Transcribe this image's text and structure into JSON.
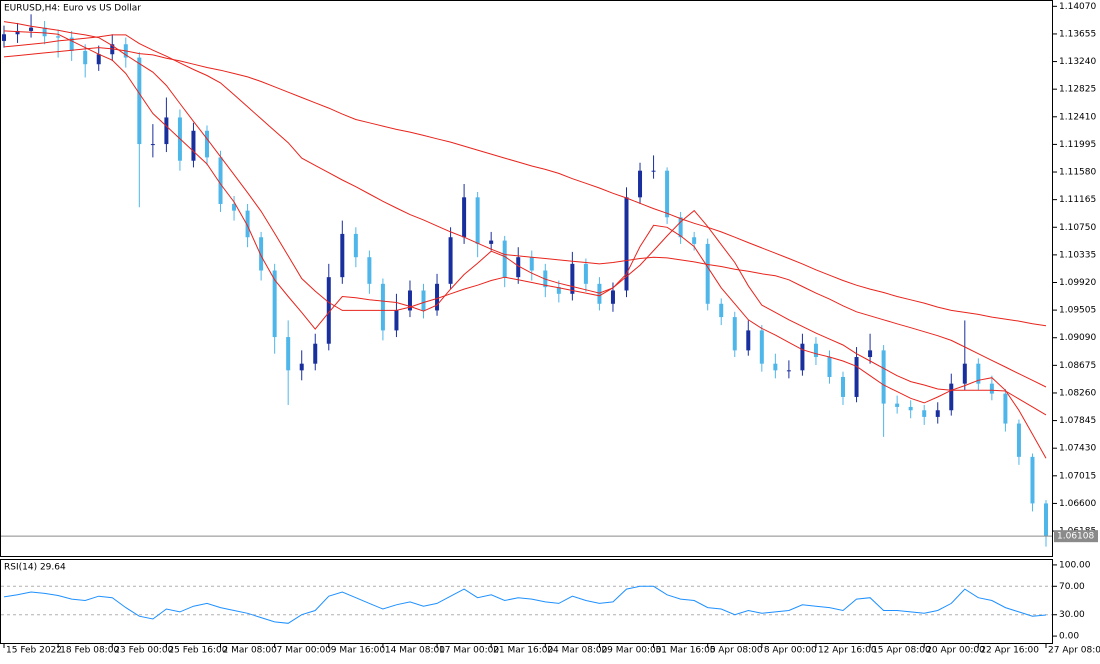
{
  "chart_data": [
    {
      "type": "candlestick",
      "title": "EURUSD,H4:  Euro vs US Dollar",
      "categories": [
        "15 Feb 2022",
        null,
        null,
        null,
        "18 Feb 08:00",
        null,
        null,
        null,
        "23 Feb 00:00",
        null,
        null,
        null,
        "25 Feb 16:00",
        null,
        null,
        null,
        "2 Mar 08:00",
        null,
        null,
        null,
        "7 Mar 00:00",
        null,
        null,
        null,
        "9 Mar 16:00",
        null,
        null,
        null,
        "14 Mar 08:00",
        null,
        null,
        null,
        "17 Mar 00:00",
        null,
        null,
        null,
        "21 Mar 16:00",
        null,
        null,
        null,
        "24 Mar 08:00",
        null,
        null,
        null,
        "29 Mar 00:00",
        null,
        null,
        null,
        "31 Mar 16:00",
        null,
        null,
        null,
        "5 Apr 08:00",
        null,
        null,
        null,
        "8 Apr 00:00",
        null,
        null,
        null,
        "12 Apr 16:00",
        null,
        null,
        null,
        "15 Apr 08:00",
        null,
        null,
        null,
        "20 Apr 00:00",
        null,
        null,
        null,
        "22 Apr 16:00",
        null,
        null,
        null,
        null,
        "27 Apr 08:00"
      ],
      "open": [
        1.1355,
        1.1365,
        1.137,
        1.1375,
        1.1362,
        1.136,
        1.134,
        1.132,
        1.1335,
        1.135,
        1.133,
        1.12,
        1.12,
        1.124,
        1.1175,
        1.122,
        1.118,
        1.111,
        1.11,
        1.106,
        1.101,
        1.091,
        1.086,
        1.087,
        1.09,
        1.1,
        1.1065,
        1.103,
        1.099,
        1.092,
        1.095,
        1.098,
        1.095,
        1.099,
        1.106,
        1.112,
        1.105,
        1.1055,
        1.1,
        1.103,
        1.101,
        1.0985,
        1.0975,
        1.102,
        1.099,
        1.096,
        1.098,
        1.112,
        1.116,
        1.116,
        1.109,
        1.106,
        1.105,
        1.096,
        1.094,
        1.089,
        1.092,
        1.087,
        1.086,
        1.086,
        1.09,
        1.088,
        1.085,
        1.082,
        1.088,
        1.089,
        1.081,
        1.0805,
        1.08,
        1.079,
        1.08,
        1.084,
        1.087,
        1.084,
        1.0825,
        1.078,
        1.073,
        1.066
      ],
      "high": [
        1.1378,
        1.1382,
        1.1395,
        1.1385,
        1.1372,
        1.137,
        1.135,
        1.1348,
        1.1365,
        1.136,
        1.1338,
        1.123,
        1.127,
        1.1252,
        1.1232,
        1.1228,
        1.119,
        1.1122,
        1.111,
        1.1068,
        1.102,
        1.0935,
        1.089,
        1.0915,
        1.102,
        1.1085,
        1.1075,
        1.104,
        1.0998,
        1.0975,
        1.0995,
        1.099,
        1.1005,
        1.1075,
        1.114,
        1.1128,
        1.1068,
        1.1062,
        1.1045,
        1.104,
        1.102,
        1.0995,
        1.1038,
        1.1028,
        1.1,
        1.0992,
        1.1135,
        1.1172,
        1.1183,
        1.1165,
        1.1098,
        1.1068,
        1.1058,
        1.0968,
        1.0948,
        1.0935,
        1.0928,
        1.0885,
        1.0875,
        1.0915,
        1.091,
        1.089,
        1.0858,
        1.0895,
        1.0915,
        1.0898,
        1.0822,
        1.0815,
        1.0808,
        1.0812,
        1.0855,
        1.0935,
        1.0878,
        1.0852,
        1.0832,
        1.0786,
        1.0735,
        1.0665
      ],
      "low": [
        1.1345,
        1.1352,
        1.136,
        1.135,
        1.133,
        1.1325,
        1.13,
        1.131,
        1.1325,
        1.1315,
        1.1105,
        1.118,
        1.1188,
        1.116,
        1.1165,
        1.1168,
        1.1098,
        1.1085,
        1.1045,
        1.0995,
        1.0885,
        1.0808,
        1.0845,
        1.086,
        1.089,
        1.099,
        1.1015,
        1.0975,
        1.0905,
        1.091,
        1.094,
        1.0938,
        1.0942,
        1.0982,
        1.105,
        1.103,
        1.104,
        1.0985,
        1.099,
        1.0995,
        1.097,
        1.0962,
        1.0965,
        1.0978,
        1.095,
        1.0948,
        1.097,
        1.111,
        1.1148,
        1.108,
        1.105,
        1.104,
        1.095,
        1.0928,
        1.088,
        1.0882,
        1.0858,
        1.0848,
        1.0848,
        1.0852,
        1.0868,
        1.084,
        1.0808,
        1.0812,
        1.087,
        1.076,
        1.0795,
        1.0788,
        1.0778,
        1.078,
        1.0792,
        1.083,
        1.083,
        1.0815,
        1.0768,
        1.0718,
        1.0648,
        1.0595
      ],
      "close": [
        1.1365,
        1.137,
        1.1375,
        1.1362,
        1.136,
        1.134,
        1.132,
        1.1335,
        1.135,
        1.133,
        1.12,
        1.12,
        1.124,
        1.1175,
        1.122,
        1.118,
        1.111,
        1.11,
        1.106,
        1.101,
        1.091,
        1.086,
        1.087,
        1.09,
        1.1,
        1.1065,
        1.103,
        1.099,
        1.092,
        1.095,
        1.098,
        1.095,
        1.099,
        1.106,
        1.112,
        1.105,
        1.1055,
        1.1,
        1.103,
        1.101,
        1.0985,
        1.0975,
        1.102,
        1.099,
        1.096,
        1.098,
        1.112,
        1.116,
        1.116,
        1.109,
        1.106,
        1.105,
        1.096,
        1.094,
        1.089,
        1.092,
        1.087,
        1.086,
        1.086,
        1.09,
        1.088,
        1.085,
        1.082,
        1.088,
        1.089,
        1.081,
        1.0805,
        1.08,
        1.079,
        1.08,
        1.084,
        1.087,
        1.084,
        1.0825,
        1.078,
        1.073,
        1.066,
        1.06108
      ],
      "up_color": "#1a2f9e",
      "down_color": "#4fb6ea",
      "lines": [
        {
          "color": "#e8241c",
          "values": [
            1.137,
            1.1369,
            1.1368,
            1.1367,
            1.1365,
            1.1355,
            1.1345,
            1.1335,
            1.1326,
            1.1306,
            1.1276,
            1.1246,
            1.1227,
            1.1208,
            1.1189,
            1.117,
            1.114,
            1.1113,
            1.1077,
            1.1032,
            1.0996,
            1.0971,
            1.0947,
            1.0922,
            1.0947,
            1.0971,
            1.0969,
            1.0966,
            1.0964,
            1.0962,
            1.0956,
            1.0949,
            1.0958,
            1.0982,
            1.1004,
            1.1021,
            1.1039,
            1.1031,
            1.1017,
            1.1006,
            1.0997,
            1.0991,
            1.0986,
            1.0981,
            1.0976,
            1.0984,
            1.1005,
            1.1046,
            1.1078,
            1.1075,
            1.1062,
            1.1046,
            1.1015,
            1.0984,
            1.096,
            1.0936,
            1.0923,
            1.0913,
            1.0902,
            1.0891,
            1.0885,
            1.088,
            1.0874,
            1.0866,
            1.0852,
            1.0838,
            1.0828,
            1.0818,
            1.0811,
            1.082,
            1.083,
            1.0837,
            1.0845,
            1.0849,
            1.083,
            1.08,
            1.0764,
            1.0728
          ]
        },
        {
          "color": "#e8241c",
          "values": [
            1.1384,
            1.1381,
            1.1377,
            1.1374,
            1.1371,
            1.1367,
            1.1364,
            1.136,
            1.1348,
            1.1334,
            1.1321,
            1.1308,
            1.1288,
            1.1261,
            1.1234,
            1.1208,
            1.1181,
            1.1154,
            1.1127,
            1.1099,
            1.1066,
            1.1032,
            1.0998,
            1.0979,
            1.0962,
            1.095,
            1.095,
            1.095,
            1.095,
            1.095,
            1.0955,
            1.0962,
            1.0968,
            1.0975,
            1.0982,
            1.0988,
            1.0995,
            1.1,
            1.0996,
            1.0992,
            1.0988,
            1.0984,
            1.098,
            1.0976,
            1.0972,
            1.0984,
            1.1001,
            1.1018,
            1.104,
            1.1062,
            1.1083,
            1.11,
            1.1076,
            1.1049,
            1.1022,
            1.0987,
            1.0958,
            1.0947,
            1.0936,
            1.0926,
            1.0916,
            1.0907,
            1.0898,
            1.0885,
            1.0874,
            1.0863,
            1.0852,
            1.0843,
            1.0838,
            1.0832,
            1.083,
            1.083,
            1.083,
            1.083,
            1.0829,
            1.0817,
            1.0805,
            1.0793
          ]
        },
        {
          "color": "#e8241c",
          "values": [
            1.1346,
            1.1348,
            1.135,
            1.1352,
            1.1355,
            1.1357,
            1.1359,
            1.1361,
            1.1364,
            1.1364,
            1.1351,
            1.1341,
            1.1332,
            1.1322,
            1.1312,
            1.1303,
            1.1292,
            1.1274,
            1.1256,
            1.1238,
            1.122,
            1.1202,
            1.1179,
            1.1168,
            1.1157,
            1.1146,
            1.1136,
            1.1125,
            1.1114,
            1.1104,
            1.1094,
            1.1086,
            1.1077,
            1.1068,
            1.106,
            1.1051,
            1.1042,
            1.1034,
            1.1032,
            1.103,
            1.1028,
            1.1026,
            1.1024,
            1.1022,
            1.102,
            1.1022,
            1.1025,
            1.1028,
            1.103,
            1.1029,
            1.1026,
            1.1023,
            1.1019,
            1.1016,
            1.1012,
            1.1009,
            1.1005,
            1.1002,
            1.0996,
            1.0986,
            1.0976,
            1.0967,
            1.0957,
            1.0948,
            1.0942,
            1.0936,
            1.093,
            1.0924,
            1.0918,
            1.0912,
            1.0905,
            1.0895,
            1.0885,
            1.0875,
            1.0865,
            1.0855,
            1.0845,
            1.0835
          ]
        },
        {
          "color": "#e8241c",
          "values": [
            1.1331,
            1.1333,
            1.1335,
            1.1337,
            1.1339,
            1.1341,
            1.1343,
            1.1345,
            1.1343,
            1.134,
            1.1336,
            1.1334,
            1.1329,
            1.1325,
            1.132,
            1.1315,
            1.1311,
            1.1306,
            1.1301,
            1.1294,
            1.1286,
            1.1278,
            1.127,
            1.1262,
            1.1254,
            1.1245,
            1.1237,
            1.1232,
            1.1227,
            1.1222,
            1.1218,
            1.1213,
            1.1208,
            1.1203,
            1.1197,
            1.1191,
            1.1185,
            1.1179,
            1.1173,
            1.1167,
            1.1162,
            1.1156,
            1.1148,
            1.1141,
            1.1134,
            1.1126,
            1.1119,
            1.1111,
            1.1103,
            1.1096,
            1.1088,
            1.1081,
            1.1075,
            1.1068,
            1.106,
            1.1052,
            1.1044,
            1.1036,
            1.1028,
            1.102,
            1.1011,
            1.1003,
            1.0995,
            1.0988,
            1.0982,
            1.0977,
            1.0971,
            1.0966,
            1.0961,
            1.0955,
            1.095,
            1.0947,
            1.0944,
            1.094,
            1.0937,
            1.0934,
            1.093,
            1.0927
          ]
        }
      ],
      "ylim": [
        1.0581,
        1.1415
      ],
      "yticks": [
        {
          "value": 1.1407,
          "label": "1.14070"
        },
        {
          "value": 1.13655,
          "label": "1.13655"
        },
        {
          "value": 1.1324,
          "label": "1.13240"
        },
        {
          "value": 1.12825,
          "label": "1.12825"
        },
        {
          "value": 1.1241,
          "label": "1.12410"
        },
        {
          "value": 1.11995,
          "label": "1.11995"
        },
        {
          "value": 1.1158,
          "label": "1.11580"
        },
        {
          "value": 1.11165,
          "label": "1.11165"
        },
        {
          "value": 1.1075,
          "label": "1.10750"
        },
        {
          "value": 1.10335,
          "label": "1.10335"
        },
        {
          "value": 1.0992,
          "label": "1.09920"
        },
        {
          "value": 1.09505,
          "label": "1.09505"
        },
        {
          "value": 1.0909,
          "label": "1.09090"
        },
        {
          "value": 1.08675,
          "label": "1.08675"
        },
        {
          "value": 1.0826,
          "label": "1.08260"
        },
        {
          "value": 1.07845,
          "label": "1.07845"
        },
        {
          "value": 1.0743,
          "label": "1.07430"
        },
        {
          "value": 1.07015,
          "label": "1.07015"
        },
        {
          "value": 1.066,
          "label": "1.06600"
        },
        {
          "value": 1.06185,
          "label": "1.06185"
        }
      ]
    },
    {
      "type": "line",
      "title": "RSI(14) 29.64",
      "color": "#1e90ff",
      "values": [
        55,
        58,
        62,
        60,
        57,
        52,
        50,
        56,
        54,
        40,
        28,
        24,
        38,
        34,
        42,
        46,
        40,
        36,
        32,
        26,
        20,
        18,
        30,
        36,
        56,
        62,
        54,
        46,
        38,
        44,
        48,
        42,
        46,
        56,
        66,
        54,
        58,
        50,
        54,
        52,
        48,
        46,
        56,
        50,
        46,
        48,
        66,
        70,
        70,
        58,
        52,
        50,
        40,
        38,
        30,
        36,
        32,
        34,
        36,
        44,
        42,
        40,
        36,
        52,
        54,
        36,
        36,
        34,
        32,
        36,
        46,
        66,
        54,
        50,
        40,
        34,
        28,
        29.64
      ],
      "levels": [
        70,
        30
      ],
      "ylim": [
        -9.7,
        106.9
      ],
      "yticks": [
        {
          "value": 100,
          "label": "100.00"
        },
        {
          "value": 70,
          "label": "70.00"
        },
        {
          "value": 30,
          "label": "30.00"
        },
        {
          "value": 0,
          "label": "0.00"
        }
      ]
    }
  ]
}
